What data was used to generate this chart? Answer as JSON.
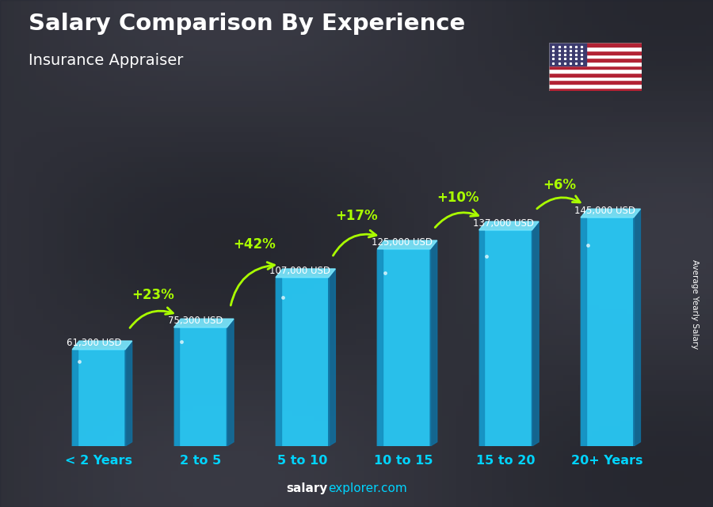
{
  "categories": [
    "< 2 Years",
    "2 to 5",
    "5 to 10",
    "10 to 15",
    "15 to 20",
    "20+ Years"
  ],
  "values": [
    61300,
    75300,
    107000,
    125000,
    137000,
    145000
  ],
  "value_labels": [
    "61,300 USD",
    "75,300 USD",
    "107,000 USD",
    "125,000 USD",
    "137,000 USD",
    "145,000 USD"
  ],
  "pct_changes": [
    null,
    "+23%",
    "+42%",
    "+17%",
    "+10%",
    "+6%"
  ],
  "title": "Salary Comparison By Experience",
  "subtitle": "Insurance Appraiser",
  "ylabel": "Average Yearly Salary",
  "footer_bold": "salary",
  "footer_regular": "explorer.com",
  "text_color_white": "#ffffff",
  "text_color_green": "#aaff00",
  "text_color_cyan": "#00d4ff",
  "bar_main": "#29c8f5",
  "bar_left": "#1590c0",
  "bar_top": "#7ae8ff",
  "bar_bottom": "#1070a0",
  "bg_dark": "#3a3d45",
  "ylim_max": 180000,
  "bar_width": 0.52
}
